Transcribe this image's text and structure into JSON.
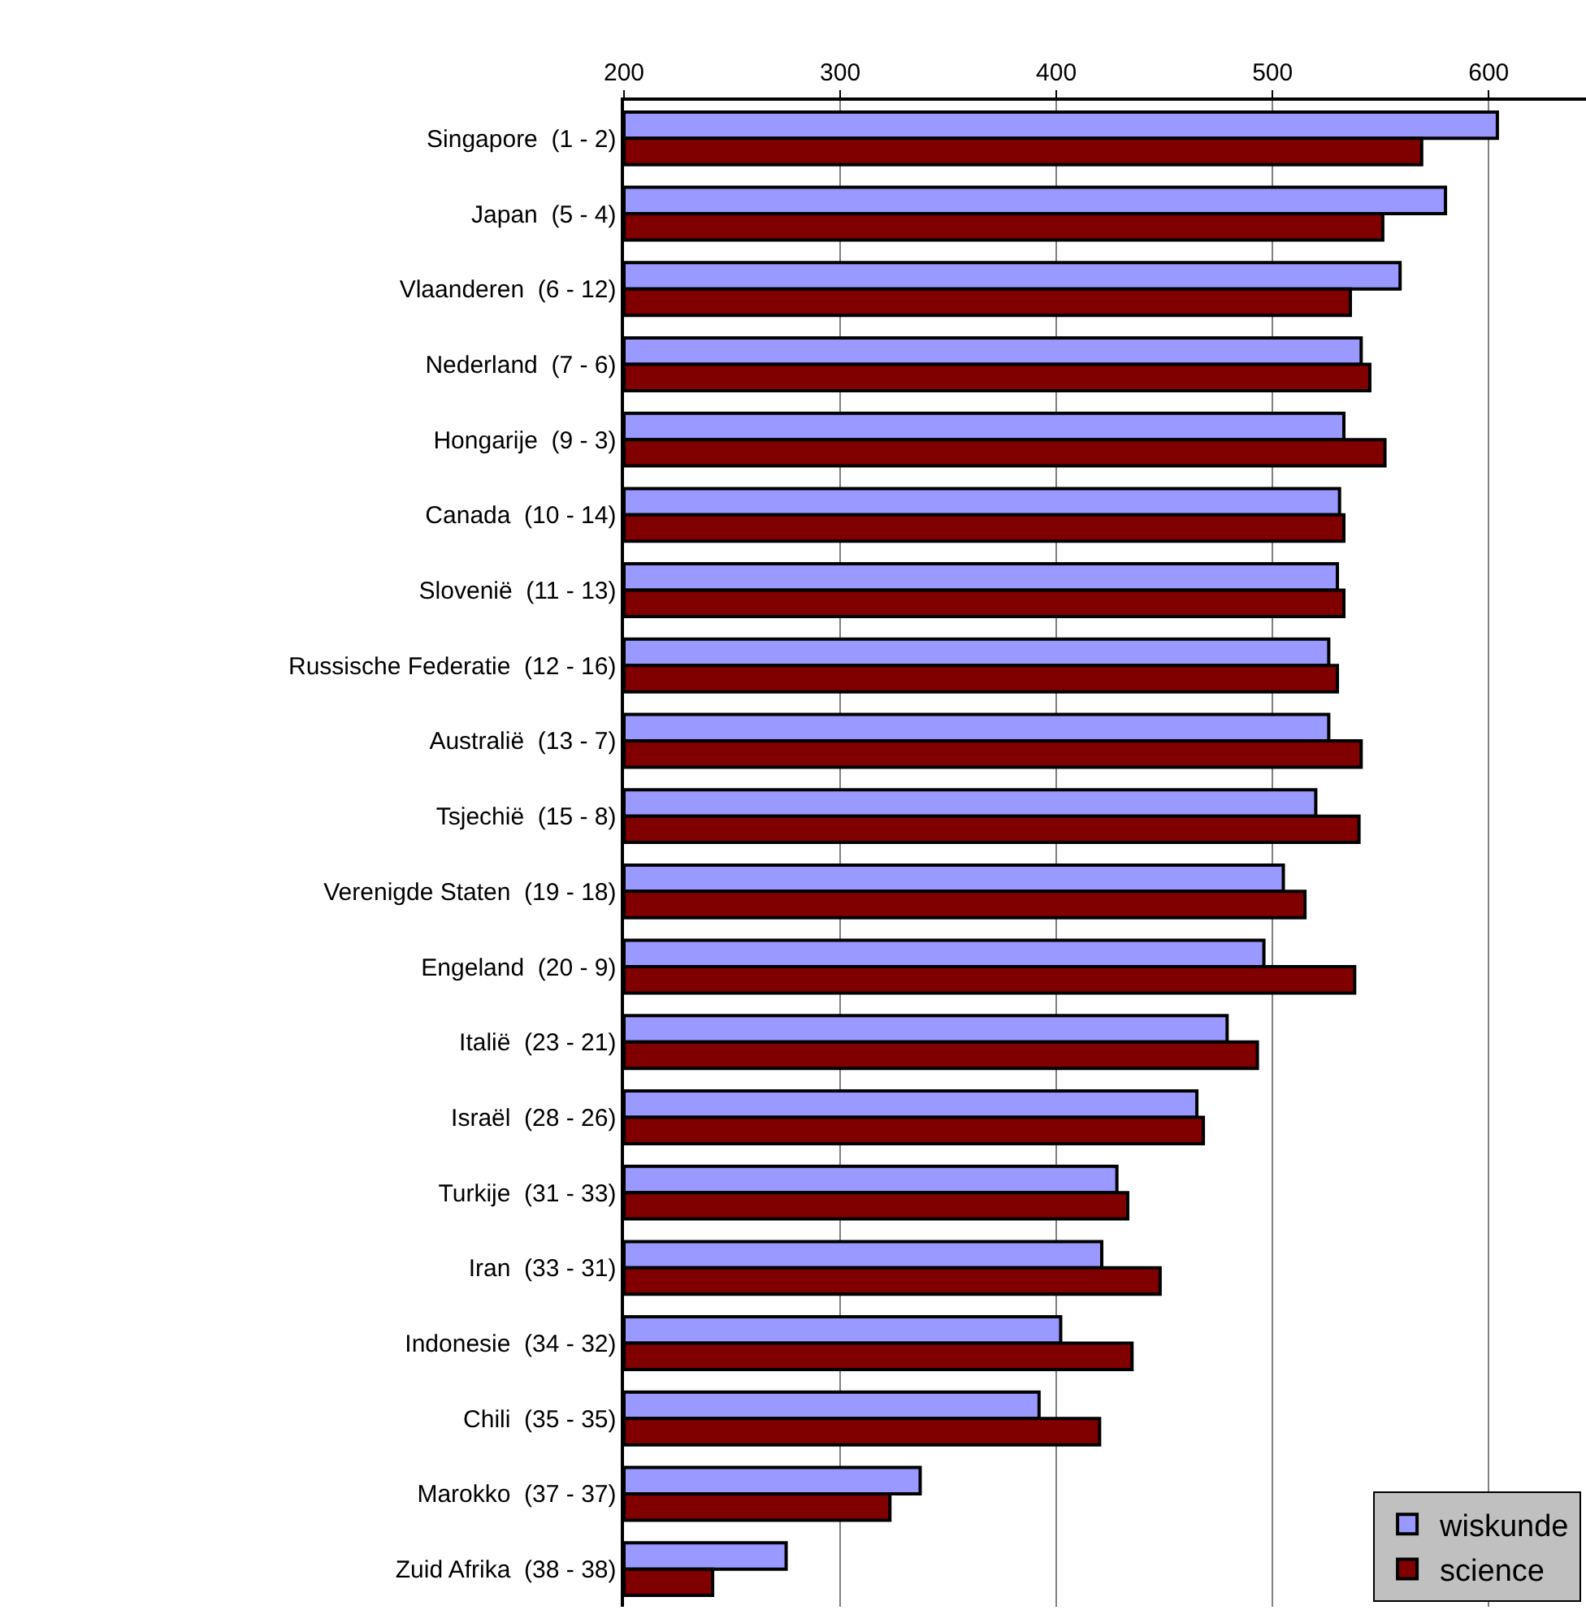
{
  "chart_data": {
    "type": "bar",
    "orientation": "horizontal",
    "categories": [
      "Singapore  (1 - 2)",
      "Japan  (5 - 4)",
      "Vlaanderen  (6 - 12)",
      "Nederland  (7 - 6)",
      "Hongarije  (9 - 3)",
      "Canada  (10 - 14)",
      "Slovenië  (11 - 13)",
      "Russische Federatie  (12 - 16)",
      "Australië  (13 - 7)",
      "Tsjechië  (15 - 8)",
      "Verenigde Staten  (19 - 18)",
      "Engeland  (20 - 9)",
      "Italië  (23 - 21)",
      "Israël  (28 - 26)",
      "Turkije  (31 - 33)",
      "Iran  (33 - 31)",
      "Indonesie  (34 - 32)",
      "Chili  (35 - 35)",
      "Marokko  (37 - 37)",
      "Zuid Afrika  (38 - 38)"
    ],
    "series": [
      {
        "name": "wiskunde",
        "color": "#9999ff",
        "values": [
          604,
          580,
          559,
          541,
          533,
          531,
          530,
          526,
          526,
          520,
          505,
          496,
          479,
          465,
          428,
          421,
          402,
          392,
          337,
          275
        ]
      },
      {
        "name": "science",
        "color": "#800000",
        "values": [
          569,
          551,
          536,
          545,
          552,
          533,
          533,
          530,
          541,
          540,
          515,
          538,
          493,
          468,
          433,
          448,
          435,
          420,
          323,
          241
        ]
      }
    ],
    "xlim": [
      200,
      645
    ],
    "xticks": [
      200,
      300,
      400,
      500,
      600
    ],
    "grid": "x",
    "legend": "bottom right"
  }
}
